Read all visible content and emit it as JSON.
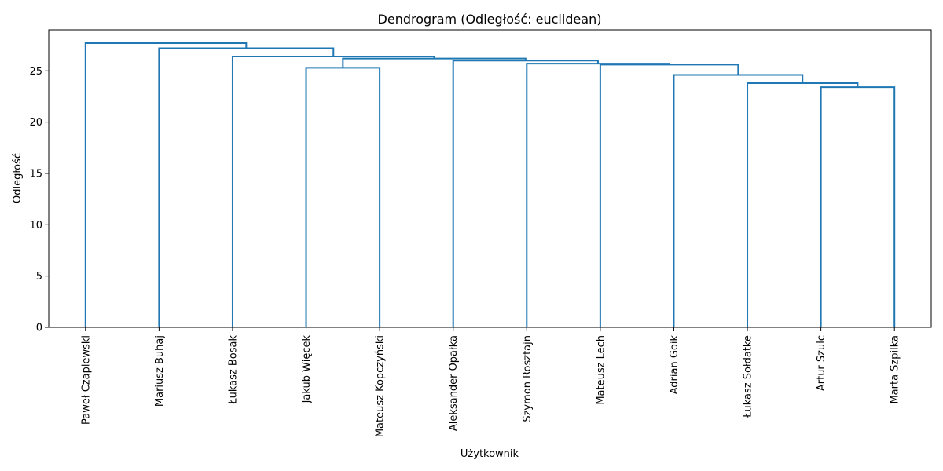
{
  "chart_data": {
    "type": "dendrogram",
    "title": "Dendrogram (Odległość: euclidean)",
    "xlabel": "Użytkownik",
    "ylabel": "Odległość",
    "ylim": [
      0,
      29
    ],
    "yticks": [
      0,
      5,
      10,
      15,
      20,
      25
    ],
    "grid": false,
    "link_color": "#1f77b4",
    "leaves": [
      "Paweł Czapiewski",
      "Mariusz Buhaj",
      "Łukasz Bosak",
      "Jakub Więcek",
      "Mateusz Kopczyński",
      "Aleksander Opałka",
      "Szymon Rosztajn",
      "Mateusz Lech",
      "Adrian Goik",
      "Łukasz Sołdatke",
      "Artur Szulc",
      "Marta Szpilka"
    ],
    "merges": [
      {
        "id": "c1",
        "left": 10,
        "right": 11,
        "height": 23.4
      },
      {
        "id": "c2",
        "left": 9,
        "right": "c1",
        "height": 23.8
      },
      {
        "id": "c3",
        "left": 8,
        "right": "c2",
        "height": 24.6
      },
      {
        "id": "c4",
        "left": 3,
        "right": 4,
        "height": 25.3
      },
      {
        "id": "c5",
        "left": 7,
        "right": "c3",
        "height": 25.6
      },
      {
        "id": "c6",
        "left": 6,
        "right": "c5",
        "height": 25.7
      },
      {
        "id": "c7",
        "left": 5,
        "right": "c6",
        "height": 26.0
      },
      {
        "id": "c8",
        "left": "c4",
        "right": "c7",
        "height": 26.2
      },
      {
        "id": "c9",
        "left": 2,
        "right": "c8",
        "height": 26.4
      },
      {
        "id": "c10",
        "left": 1,
        "right": "c9",
        "height": 27.2
      },
      {
        "id": "c11",
        "left": 0,
        "right": "c10",
        "height": 27.7
      }
    ]
  }
}
